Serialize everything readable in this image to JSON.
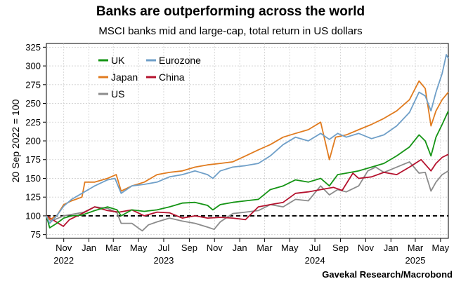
{
  "title": "Banks are outperforming across the world",
  "subtitle": "MSCI banks mid and large-cap, total return in US dollars",
  "source": "Gavekal Research/Macrobond",
  "chart_data": {
    "type": "line",
    "ylabel": "20 Sep 2022 = 100",
    "ylim": [
      70,
      330
    ],
    "yticks": [
      75,
      100,
      125,
      150,
      175,
      200,
      225,
      250,
      275,
      300,
      325
    ],
    "xlim": [
      "2022-09-20",
      "2025-05-20"
    ],
    "xticks": [
      {
        "date": "2022-11-01",
        "label": "Nov",
        "year": "2022"
      },
      {
        "date": "2023-01-01",
        "label": "Jan",
        "year": ""
      },
      {
        "date": "2023-03-01",
        "label": "Mar",
        "year": ""
      },
      {
        "date": "2023-05-01",
        "label": "May",
        "year": ""
      },
      {
        "date": "2023-07-01",
        "label": "Jul",
        "year": "2023"
      },
      {
        "date": "2023-09-01",
        "label": "Sep",
        "year": ""
      },
      {
        "date": "2023-11-01",
        "label": "Nov",
        "year": ""
      },
      {
        "date": "2024-01-01",
        "label": "Jan",
        "year": ""
      },
      {
        "date": "2024-03-01",
        "label": "Mar",
        "year": ""
      },
      {
        "date": "2024-05-01",
        "label": "May",
        "year": ""
      },
      {
        "date": "2024-07-01",
        "label": "Jul",
        "year": "2024"
      },
      {
        "date": "2024-09-01",
        "label": "Sep",
        "year": ""
      },
      {
        "date": "2024-11-01",
        "label": "Nov",
        "year": ""
      },
      {
        "date": "2025-01-01",
        "label": "Jan",
        "year": ""
      },
      {
        "date": "2025-03-01",
        "label": "Mar",
        "year": "2025"
      },
      {
        "date": "2025-05-01",
        "label": "May",
        "year": ""
      }
    ],
    "reference_line": {
      "y": 100,
      "style": "dashed"
    },
    "grid": true,
    "legend_position": "top-left",
    "series": [
      {
        "name": "UK",
        "color": "#149414",
        "points": [
          [
            "2022-09-20",
            100
          ],
          [
            "2022-09-28",
            84
          ],
          [
            "2022-10-15",
            90
          ],
          [
            "2022-11-01",
            97
          ],
          [
            "2022-11-20",
            100
          ],
          [
            "2022-12-15",
            101
          ],
          [
            "2023-01-15",
            107
          ],
          [
            "2023-02-15",
            112
          ],
          [
            "2023-03-10",
            108
          ],
          [
            "2023-03-20",
            100
          ],
          [
            "2023-04-15",
            108
          ],
          [
            "2023-05-15",
            106
          ],
          [
            "2023-06-15",
            108
          ],
          [
            "2023-07-15",
            112
          ],
          [
            "2023-08-15",
            117
          ],
          [
            "2023-09-15",
            118
          ],
          [
            "2023-10-15",
            114
          ],
          [
            "2023-10-28",
            108
          ],
          [
            "2023-11-15",
            115
          ],
          [
            "2023-12-15",
            118
          ],
          [
            "2024-01-15",
            120
          ],
          [
            "2024-02-15",
            122
          ],
          [
            "2024-03-15",
            135
          ],
          [
            "2024-04-15",
            140
          ],
          [
            "2024-05-15",
            148
          ],
          [
            "2024-06-15",
            145
          ],
          [
            "2024-07-15",
            150
          ],
          [
            "2024-08-05",
            140
          ],
          [
            "2024-08-25",
            155
          ],
          [
            "2024-09-15",
            157
          ],
          [
            "2024-10-15",
            160
          ],
          [
            "2024-11-15",
            165
          ],
          [
            "2024-12-15",
            170
          ],
          [
            "2025-01-15",
            180
          ],
          [
            "2025-02-15",
            192
          ],
          [
            "2025-03-10",
            208
          ],
          [
            "2025-03-25",
            200
          ],
          [
            "2025-04-08",
            180
          ],
          [
            "2025-04-20",
            205
          ],
          [
            "2025-05-05",
            222
          ],
          [
            "2025-05-20",
            240
          ]
        ]
      },
      {
        "name": "Eurozone",
        "color": "#6f9fc8",
        "points": [
          [
            "2022-09-20",
            100
          ],
          [
            "2022-09-28",
            90
          ],
          [
            "2022-10-15",
            100
          ],
          [
            "2022-11-01",
            113
          ],
          [
            "2022-11-20",
            122
          ],
          [
            "2022-12-15",
            130
          ],
          [
            "2023-01-15",
            140
          ],
          [
            "2023-02-15",
            148
          ],
          [
            "2023-03-05",
            150
          ],
          [
            "2023-03-20",
            130
          ],
          [
            "2023-04-15",
            140
          ],
          [
            "2023-05-15",
            142
          ],
          [
            "2023-06-15",
            145
          ],
          [
            "2023-07-15",
            152
          ],
          [
            "2023-08-15",
            155
          ],
          [
            "2023-09-15",
            160
          ],
          [
            "2023-10-15",
            155
          ],
          [
            "2023-10-28",
            150
          ],
          [
            "2023-11-15",
            160
          ],
          [
            "2023-12-15",
            165
          ],
          [
            "2024-01-15",
            167
          ],
          [
            "2024-02-15",
            170
          ],
          [
            "2024-03-15",
            180
          ],
          [
            "2024-04-15",
            195
          ],
          [
            "2024-05-15",
            205
          ],
          [
            "2024-06-15",
            200
          ],
          [
            "2024-07-15",
            210
          ],
          [
            "2024-08-05",
            202
          ],
          [
            "2024-08-25",
            210
          ],
          [
            "2024-09-15",
            205
          ],
          [
            "2024-10-15",
            210
          ],
          [
            "2024-11-15",
            203
          ],
          [
            "2024-12-15",
            208
          ],
          [
            "2025-01-15",
            220
          ],
          [
            "2025-02-15",
            238
          ],
          [
            "2025-03-10",
            265
          ],
          [
            "2025-03-25",
            260
          ],
          [
            "2025-04-08",
            240
          ],
          [
            "2025-04-20",
            265
          ],
          [
            "2025-05-05",
            290
          ],
          [
            "2025-05-15",
            315
          ],
          [
            "2025-05-20",
            310
          ]
        ]
      },
      {
        "name": "Japan",
        "color": "#e07b1f",
        "points": [
          [
            "2022-09-20",
            100
          ],
          [
            "2022-09-28",
            95
          ],
          [
            "2022-10-15",
            100
          ],
          [
            "2022-11-01",
            115
          ],
          [
            "2022-11-20",
            120
          ],
          [
            "2022-12-15",
            125
          ],
          [
            "2022-12-22",
            145
          ],
          [
            "2023-01-15",
            145
          ],
          [
            "2023-02-15",
            150
          ],
          [
            "2023-03-08",
            155
          ],
          [
            "2023-03-20",
            133
          ],
          [
            "2023-04-15",
            140
          ],
          [
            "2023-05-15",
            145
          ],
          [
            "2023-06-15",
            155
          ],
          [
            "2023-07-15",
            158
          ],
          [
            "2023-08-15",
            160
          ],
          [
            "2023-09-15",
            165
          ],
          [
            "2023-10-15",
            168
          ],
          [
            "2023-11-15",
            170
          ],
          [
            "2023-12-15",
            172
          ],
          [
            "2024-01-15",
            180
          ],
          [
            "2024-02-15",
            188
          ],
          [
            "2024-03-15",
            195
          ],
          [
            "2024-04-15",
            205
          ],
          [
            "2024-05-15",
            210
          ],
          [
            "2024-06-15",
            215
          ],
          [
            "2024-07-15",
            225
          ],
          [
            "2024-08-05",
            175
          ],
          [
            "2024-08-20",
            205
          ],
          [
            "2024-09-15",
            208
          ],
          [
            "2024-10-15",
            215
          ],
          [
            "2024-11-15",
            222
          ],
          [
            "2024-12-15",
            230
          ],
          [
            "2025-01-15",
            240
          ],
          [
            "2025-02-15",
            255
          ],
          [
            "2025-03-10",
            280
          ],
          [
            "2025-03-25",
            270
          ],
          [
            "2025-04-08",
            220
          ],
          [
            "2025-04-20",
            240
          ],
          [
            "2025-05-05",
            255
          ],
          [
            "2025-05-20",
            265
          ]
        ]
      },
      {
        "name": "China",
        "color": "#b5122e",
        "points": [
          [
            "2022-09-20",
            100
          ],
          [
            "2022-10-05",
            95
          ],
          [
            "2022-10-31",
            86
          ],
          [
            "2022-11-15",
            95
          ],
          [
            "2022-12-15",
            103
          ],
          [
            "2023-01-15",
            112
          ],
          [
            "2023-02-15",
            107
          ],
          [
            "2023-03-15",
            105
          ],
          [
            "2023-04-15",
            108
          ],
          [
            "2023-05-15",
            100
          ],
          [
            "2023-06-15",
            105
          ],
          [
            "2023-07-15",
            104
          ],
          [
            "2023-08-15",
            97
          ],
          [
            "2023-09-15",
            100
          ],
          [
            "2023-10-15",
            97
          ],
          [
            "2023-11-15",
            98
          ],
          [
            "2023-12-15",
            97
          ],
          [
            "2024-01-15",
            95
          ],
          [
            "2024-02-15",
            112
          ],
          [
            "2024-03-15",
            115
          ],
          [
            "2024-04-15",
            118
          ],
          [
            "2024-05-15",
            130
          ],
          [
            "2024-06-15",
            132
          ],
          [
            "2024-07-15",
            135
          ],
          [
            "2024-08-15",
            138
          ],
          [
            "2024-09-05",
            134
          ],
          [
            "2024-10-01",
            157
          ],
          [
            "2024-10-15",
            150
          ],
          [
            "2024-11-15",
            152
          ],
          [
            "2024-12-15",
            158
          ],
          [
            "2025-01-15",
            155
          ],
          [
            "2025-02-15",
            165
          ],
          [
            "2025-03-15",
            175
          ],
          [
            "2025-04-08",
            160
          ],
          [
            "2025-04-20",
            170
          ],
          [
            "2025-05-05",
            178
          ],
          [
            "2025-05-20",
            182
          ]
        ]
      },
      {
        "name": "US",
        "color": "#8c8c8c",
        "points": [
          [
            "2022-09-20",
            100
          ],
          [
            "2022-10-01",
            93
          ],
          [
            "2022-11-01",
            100
          ],
          [
            "2022-12-01",
            103
          ],
          [
            "2022-12-20",
            105
          ],
          [
            "2023-01-15",
            112
          ],
          [
            "2023-02-15",
            110
          ],
          [
            "2023-03-10",
            104
          ],
          [
            "2023-03-20",
            90
          ],
          [
            "2023-04-15",
            90
          ],
          [
            "2023-05-10",
            80
          ],
          [
            "2023-05-25",
            88
          ],
          [
            "2023-06-15",
            92
          ],
          [
            "2023-07-15",
            97
          ],
          [
            "2023-08-15",
            93
          ],
          [
            "2023-09-15",
            90
          ],
          [
            "2023-10-15",
            85
          ],
          [
            "2023-10-31",
            82
          ],
          [
            "2023-11-15",
            92
          ],
          [
            "2023-12-15",
            103
          ],
          [
            "2024-01-15",
            105
          ],
          [
            "2024-02-15",
            107
          ],
          [
            "2024-03-15",
            115
          ],
          [
            "2024-04-15",
            112
          ],
          [
            "2024-05-15",
            122
          ],
          [
            "2024-06-15",
            120
          ],
          [
            "2024-07-15",
            140
          ],
          [
            "2024-08-05",
            128
          ],
          [
            "2024-08-25",
            135
          ],
          [
            "2024-09-15",
            132
          ],
          [
            "2024-10-15",
            140
          ],
          [
            "2024-11-06",
            160
          ],
          [
            "2024-11-25",
            165
          ],
          [
            "2024-12-15",
            158
          ],
          [
            "2025-01-15",
            165
          ],
          [
            "2025-02-15",
            172
          ],
          [
            "2025-03-10",
            157
          ],
          [
            "2025-03-25",
            158
          ],
          [
            "2025-04-08",
            133
          ],
          [
            "2025-04-20",
            145
          ],
          [
            "2025-05-05",
            155
          ],
          [
            "2025-05-20",
            160
          ]
        ]
      }
    ]
  }
}
